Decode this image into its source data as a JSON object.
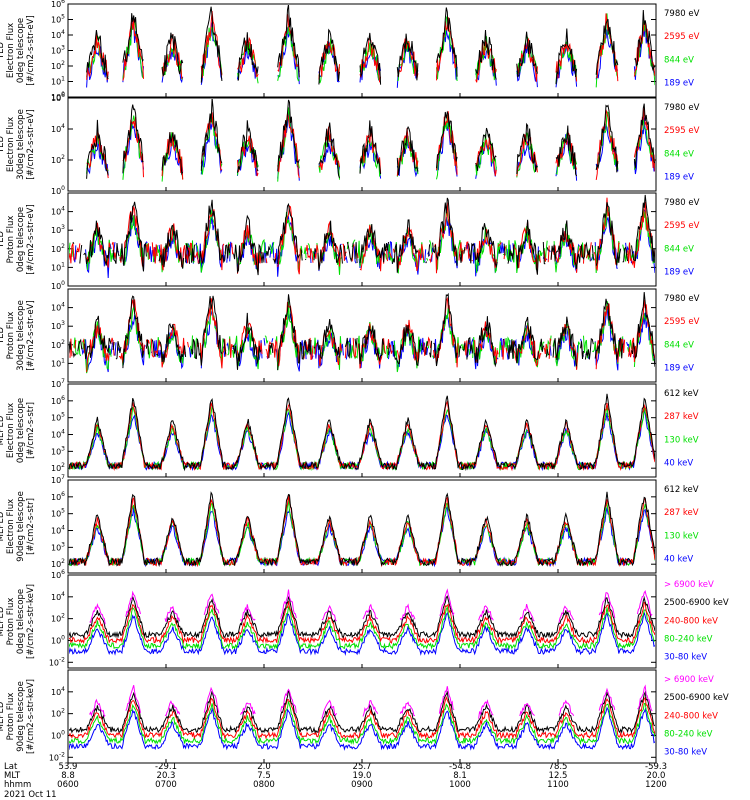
{
  "colors": {
    "black": "#000000",
    "red": "#ff0000",
    "green": "#00e000",
    "blue": "#0000ff",
    "magenta": "#ff00ff"
  },
  "chart_data": [
    {
      "type": "line",
      "ylabel_lines": [
        "TED",
        "Electron Flux",
        "0deg telescope",
        "[#/cm2-s-str-eV]"
      ],
      "yscale": "log",
      "ylim": [
        1,
        1000000
      ],
      "yticks": [
        {
          "sup": "0",
          "v": 1
        },
        {
          "sup": "1",
          "v": 10
        },
        {
          "sup": "2",
          "v": 100
        },
        {
          "sup": "3",
          "v": 1000
        },
        {
          "sup": "4",
          "v": 10000
        },
        {
          "sup": "5",
          "v": 100000
        },
        {
          "sup": "6",
          "v": 1000000
        }
      ],
      "series": [
        {
          "name": "7980 eV",
          "color": "#000000"
        },
        {
          "name": "2595 eV",
          "color": "#ff0000"
        },
        {
          "name": "844 eV",
          "color": "#00e000"
        },
        {
          "name": "189 eV",
          "color": "#0000ff"
        }
      ]
    },
    {
      "type": "line",
      "ylabel_lines": [
        "TED",
        "Electron Flux",
        "30deg telescope",
        "[#/cm2-s-str-eV]"
      ],
      "yscale": "log",
      "ylim": [
        1,
        1000000
      ],
      "yticks": [
        {
          "sup": "0",
          "v": 1
        },
        {
          "sup": "2",
          "v": 100
        },
        {
          "sup": "4",
          "v": 10000
        },
        {
          "sup": "6",
          "v": 1000000
        }
      ],
      "series": [
        {
          "name": "7980 eV",
          "color": "#000000"
        },
        {
          "name": "2595 eV",
          "color": "#ff0000"
        },
        {
          "name": "844 eV",
          "color": "#00e000"
        },
        {
          "name": "189 eV",
          "color": "#0000ff"
        }
      ]
    },
    {
      "type": "line",
      "ylabel_lines": [
        "TED",
        "Proton Flux",
        "0deg telescope",
        "[#/cm2-s-str-eV]"
      ],
      "yscale": "log",
      "ylim": [
        1,
        100000
      ],
      "yticks": [
        {
          "sup": "0",
          "v": 1
        },
        {
          "sup": "1",
          "v": 10
        },
        {
          "sup": "2",
          "v": 100
        },
        {
          "sup": "3",
          "v": 1000
        },
        {
          "sup": "4",
          "v": 10000
        }
      ],
      "series": [
        {
          "name": "7980 eV",
          "color": "#000000"
        },
        {
          "name": "2595 eV",
          "color": "#ff0000"
        },
        {
          "name": "844 eV",
          "color": "#00e000"
        },
        {
          "name": "189 eV",
          "color": "#0000ff"
        }
      ]
    },
    {
      "type": "line",
      "ylabel_lines": [
        "TED",
        "Proton Flux",
        "30deg telescope",
        "[#/cm2-s-str-eV]"
      ],
      "yscale": "log",
      "ylim": [
        1,
        100000
      ],
      "yticks": [
        {
          "sup": "1",
          "v": 10
        },
        {
          "sup": "2",
          "v": 100
        },
        {
          "sup": "3",
          "v": 1000
        },
        {
          "sup": "4",
          "v": 10000
        }
      ],
      "series": [
        {
          "name": "7980 eV",
          "color": "#000000"
        },
        {
          "name": "2595 eV",
          "color": "#ff0000"
        },
        {
          "name": "844 eV",
          "color": "#00e000"
        },
        {
          "name": "189 eV",
          "color": "#0000ff"
        }
      ]
    },
    {
      "type": "line",
      "ylabel_lines": [
        "MEPED",
        "Electron Flux",
        "0deg telescope",
        "[#/cm2-s-str]"
      ],
      "yscale": "log",
      "ylim": [
        30,
        10000000
      ],
      "yticks": [
        {
          "sup": "2",
          "v": 100
        },
        {
          "sup": "3",
          "v": 1000
        },
        {
          "sup": "4",
          "v": 10000
        },
        {
          "sup": "5",
          "v": 100000
        },
        {
          "sup": "6",
          "v": 1000000
        },
        {
          "sup": "7",
          "v": 10000000
        }
      ],
      "series": [
        {
          "name": "612 keV",
          "color": "#000000"
        },
        {
          "name": "287 keV",
          "color": "#ff0000"
        },
        {
          "name": "130 keV",
          "color": "#00e000"
        },
        {
          "name": "40 keV",
          "color": "#0000ff"
        }
      ]
    },
    {
      "type": "line",
      "ylabel_lines": [
        "MEPED",
        "Electron Flux",
        "90deg telescope",
        "[#/cm2-s-str]"
      ],
      "yscale": "log",
      "ylim": [
        30,
        10000000
      ],
      "yticks": [
        {
          "sup": "2",
          "v": 100
        },
        {
          "sup": "3",
          "v": 1000
        },
        {
          "sup": "4",
          "v": 10000
        },
        {
          "sup": "5",
          "v": 100000
        },
        {
          "sup": "6",
          "v": 1000000
        },
        {
          "sup": "7",
          "v": 10000000
        }
      ],
      "series": [
        {
          "name": "612 keV",
          "color": "#000000"
        },
        {
          "name": "287 keV",
          "color": "#ff0000"
        },
        {
          "name": "130 keV",
          "color": "#00e000"
        },
        {
          "name": "40 keV",
          "color": "#0000ff"
        }
      ]
    },
    {
      "type": "line",
      "ylabel_lines": [
        "MEPED",
        "Proton Flux",
        "0deg telescope",
        "[#/cm2-s-str-keV]"
      ],
      "yscale": "log",
      "ylim": [
        0.003,
        1000000
      ],
      "yticks": [
        {
          "sup": "-2",
          "v": 0.01
        },
        {
          "sup": "0",
          "v": 1
        },
        {
          "sup": "2",
          "v": 100
        },
        {
          "sup": "4",
          "v": 10000
        },
        {
          "sup": "6",
          "v": 1000000
        }
      ],
      "series": [
        {
          "name": "> 6900 keV",
          "color": "#ff00ff"
        },
        {
          "name": "2500-6900 keV",
          "color": "#000000"
        },
        {
          "name": "240-800 keV",
          "color": "#ff0000"
        },
        {
          "name": "80-240 keV",
          "color": "#00e000"
        },
        {
          "name": "30-80 keV",
          "color": "#0000ff"
        }
      ]
    },
    {
      "type": "line",
      "ylabel_lines": [
        "MEPED",
        "Proton Flux",
        "90deg telescope",
        "[#/cm2-s-str-keV]"
      ],
      "yscale": "log",
      "ylim": [
        0.003,
        1000000
      ],
      "yticks": [
        {
          "sup": "-2",
          "v": 0.01
        },
        {
          "sup": "0",
          "v": 1
        },
        {
          "sup": "2",
          "v": 100
        },
        {
          "sup": "4",
          "v": 10000
        }
      ],
      "series": [
        {
          "name": "> 6900 keV",
          "color": "#ff00ff"
        },
        {
          "name": "2500-6900 keV",
          "color": "#000000"
        },
        {
          "name": "240-800 keV",
          "color": "#ff0000"
        },
        {
          "name": "80-240 keV",
          "color": "#00e000"
        },
        {
          "name": "30-80 keV",
          "color": "#0000ff"
        }
      ]
    }
  ],
  "xaxis": {
    "row_labels": [
      "Lat",
      "MLT",
      "hhmm",
      "2021 Oct 11"
    ],
    "ticks": [
      {
        "lat": "53.9",
        "mlt": "8.8",
        "hhmm": "0600",
        "min": 0
      },
      {
        "lat": "-29.1",
        "mlt": "20.3",
        "hhmm": "0700",
        "min": 60
      },
      {
        "lat": "2.0",
        "mlt": "7.5",
        "hhmm": "0800",
        "min": 120
      },
      {
        "lat": "25.7",
        "mlt": "19.0",
        "hhmm": "0900",
        "min": 180
      },
      {
        "lat": "-54.8",
        "mlt": "8.1",
        "hhmm": "1000",
        "min": 240
      },
      {
        "lat": "78.5",
        "mlt": "12.5",
        "hhmm": "1100",
        "min": 300
      },
      {
        "lat": "-59.3",
        "mlt": "20.0",
        "hhmm": "1200",
        "min": 360
      }
    ],
    "range_min": [
      0,
      360
    ]
  }
}
